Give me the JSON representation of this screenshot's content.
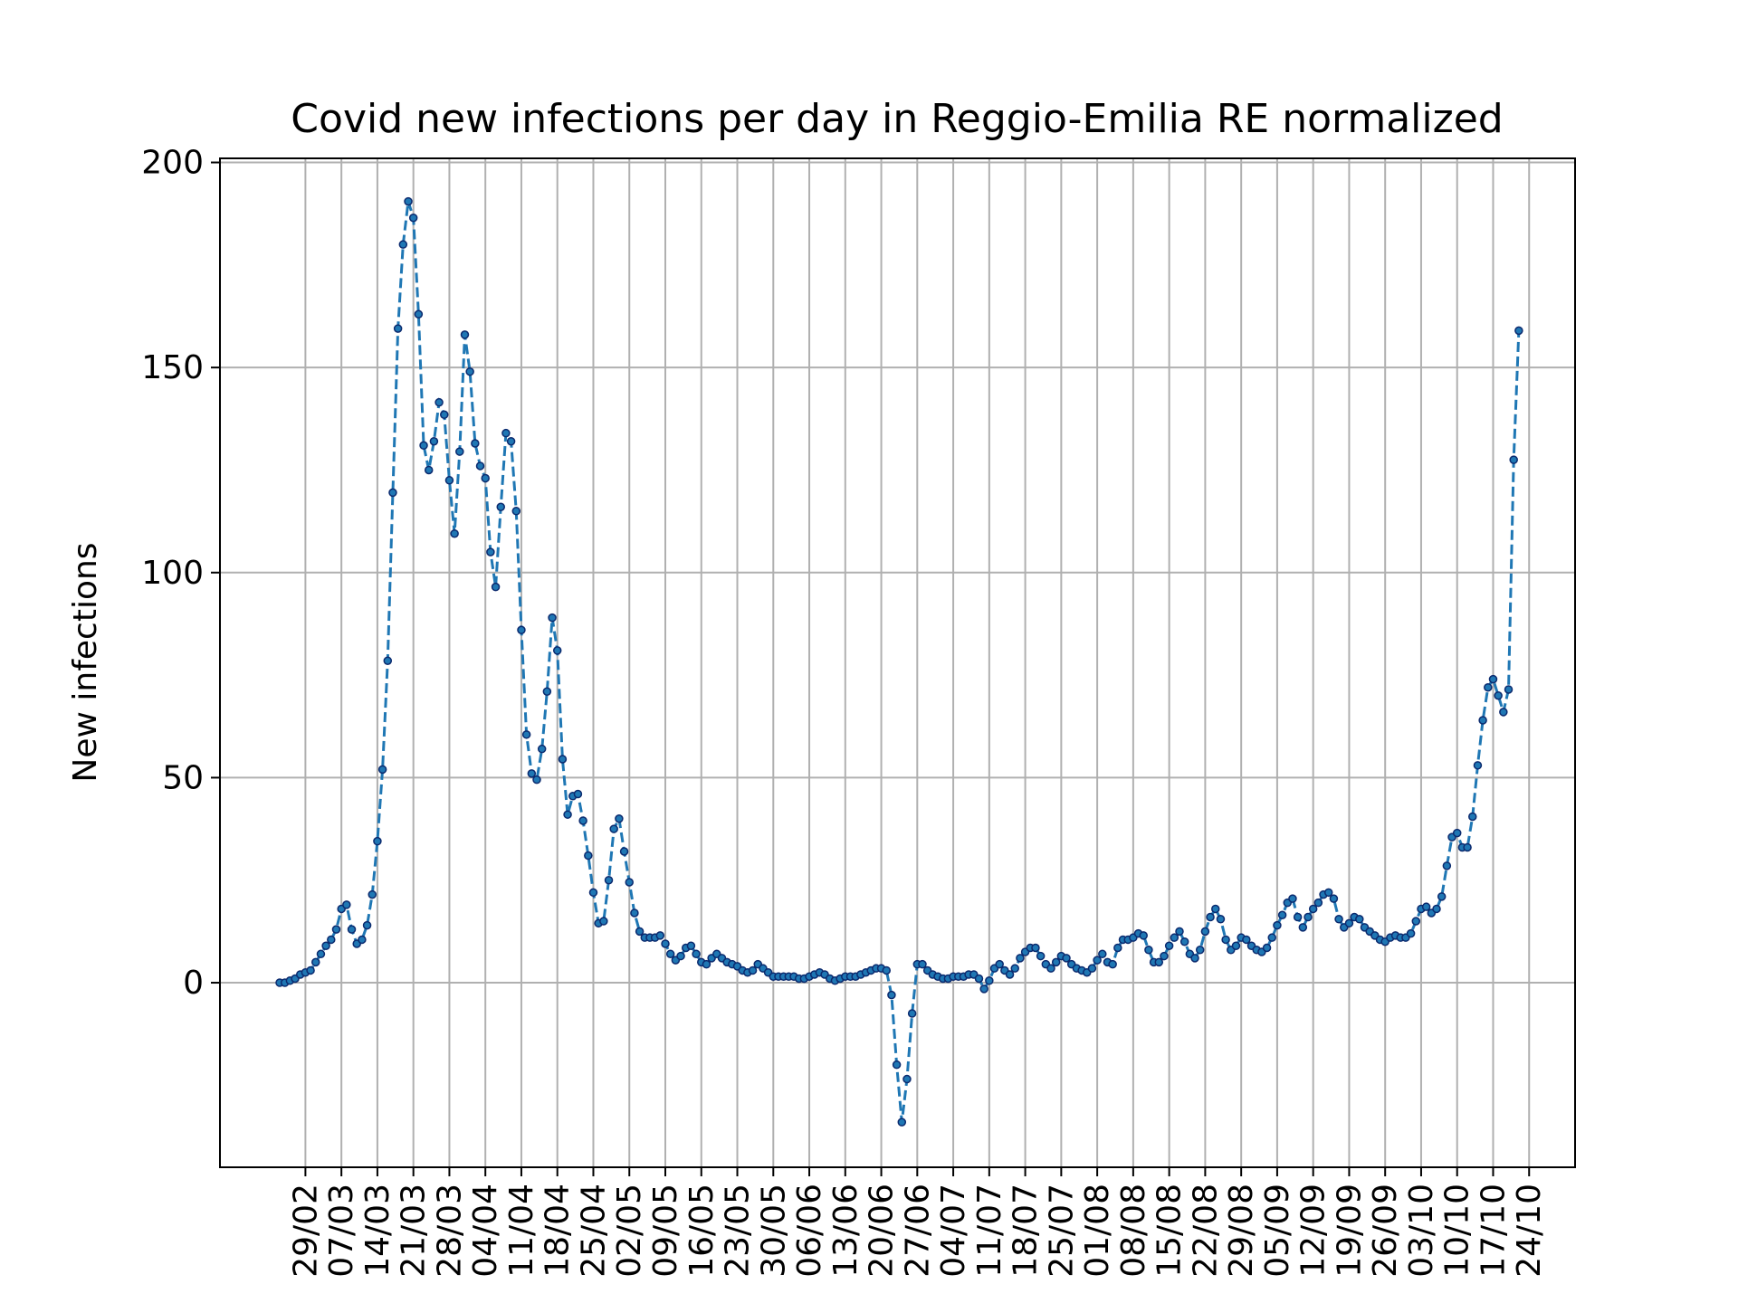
{
  "chart_data": {
    "type": "line",
    "title": "Covid new infections per day in Reggio-Emilia RE normalized",
    "xlabel": "",
    "ylabel": "New infections",
    "ylim": [
      -45,
      201
    ],
    "yticks": [
      0,
      50,
      100,
      150,
      200
    ],
    "xticks": [
      "29/02",
      "07/03",
      "14/03",
      "21/03",
      "28/03",
      "04/04",
      "11/04",
      "18/04",
      "25/04",
      "02/05",
      "09/05",
      "16/05",
      "23/05",
      "30/05",
      "06/06",
      "13/06",
      "20/06",
      "27/06",
      "04/07",
      "11/07",
      "18/07",
      "25/07",
      "01/08",
      "08/08",
      "15/08",
      "22/08",
      "29/08",
      "05/09",
      "12/09",
      "19/09",
      "26/09",
      "03/10",
      "10/10",
      "17/10",
      "24/10"
    ],
    "x_start": "24/02",
    "grid": true,
    "series": [
      {
        "color": "#1f77b4",
        "linestyle": "dashed",
        "marker": "dot",
        "values": [
          0,
          0,
          0.5,
          1,
          2,
          2.5,
          3,
          5,
          7,
          9,
          10.5,
          13,
          18,
          19,
          13,
          9.5,
          10.5,
          14,
          21.5,
          34.5,
          52,
          78.5,
          119.5,
          159.5,
          180,
          190.5,
          186.5,
          163,
          131,
          125,
          132,
          141.5,
          138.5,
          122.5,
          109.5,
          129.5,
          158,
          149,
          131.5,
          126,
          123,
          105,
          96.5,
          116,
          134,
          132,
          115,
          86,
          60.5,
          51,
          49.5,
          57,
          71,
          89,
          81,
          54.5,
          41,
          45.5,
          46,
          39.5,
          31,
          22,
          14.5,
          15,
          25,
          37.5,
          40,
          32,
          24.5,
          17,
          12.5,
          11,
          11,
          11,
          11.5,
          9.5,
          7,
          5.5,
          6.5,
          8.5,
          9,
          7,
          5,
          4.5,
          6,
          7,
          6,
          5,
          4.5,
          4,
          3,
          2.5,
          3,
          4.5,
          3.5,
          2.5,
          1.5,
          1.5,
          1.5,
          1.5,
          1.5,
          1,
          1,
          1.5,
          2,
          2.5,
          2,
          1,
          0.5,
          1,
          1.5,
          1.5,
          1.5,
          2,
          2.5,
          3,
          3.5,
          3.5,
          3,
          -3,
          -20,
          -34,
          -23.5,
          -7.5,
          4.5,
          4.5,
          3,
          2,
          1.5,
          1,
          1,
          1.5,
          1.5,
          1.5,
          2,
          2,
          1,
          -1.5,
          0.5,
          3.5,
          4.5,
          3,
          2,
          3.5,
          6,
          7.5,
          8.5,
          8.5,
          6.5,
          4.5,
          3.5,
          5,
          6.5,
          6,
          4.5,
          3.5,
          3,
          2.5,
          3.5,
          5.5,
          7,
          5,
          4.5,
          8.5,
          10.5,
          10.5,
          11,
          12,
          11.5,
          8,
          5,
          5,
          6.5,
          9,
          11,
          12.5,
          10,
          7,
          6,
          8,
          12.5,
          16,
          18,
          15.5,
          10.5,
          8,
          9,
          11,
          10.5,
          9,
          8,
          7.5,
          8.5,
          11,
          14,
          16.5,
          19.5,
          20.5,
          16,
          13.5,
          16,
          18,
          19.5,
          21.5,
          22,
          20.5,
          15.5,
          13.5,
          14.5,
          16,
          15.5,
          13.5,
          12.5,
          11.5,
          10.5,
          10,
          11,
          11.5,
          11,
          11,
          12,
          15,
          18,
          18.5,
          17,
          18,
          21,
          28.5,
          35.5,
          36.5,
          33,
          33,
          40.5,
          53,
          64,
          72,
          74,
          70,
          66,
          71.5,
          127.5,
          159
        ]
      }
    ]
  }
}
